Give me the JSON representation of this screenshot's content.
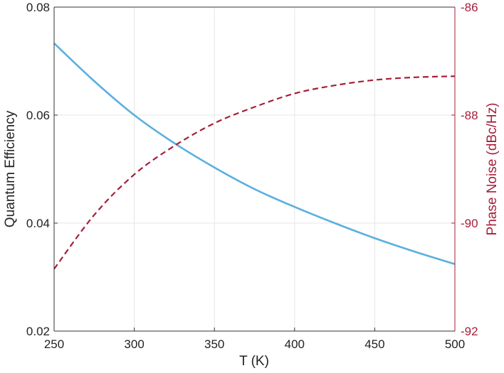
{
  "chart_data": {
    "type": "line",
    "title": "",
    "xlabel": "T (K)",
    "ylabel_left": "Quantum Efficiency",
    "ylabel_right": "Phase Noise (dBc/Hz)",
    "xlim": [
      250,
      500
    ],
    "ylim_left": [
      0.02,
      0.08
    ],
    "ylim_right": [
      -92,
      -86
    ],
    "x_ticks": [
      250,
      300,
      350,
      400,
      450,
      500
    ],
    "y_ticks_left": [
      "0.02",
      "0.04",
      "0.06",
      "0.08"
    ],
    "y_ticks_right": [
      "-92",
      "-90",
      "-88",
      "-86"
    ],
    "grid": true,
    "legend": "none",
    "series": [
      {
        "axis": "left",
        "style": "solid",
        "color": "#5aafdf",
        "x": [
          250,
          275,
          300,
          325,
          350,
          375,
          400,
          425,
          450,
          475,
          500
        ],
        "y": [
          0.0733,
          0.0663,
          0.06,
          0.0548,
          0.0503,
          0.0463,
          0.043,
          0.04,
          0.0372,
          0.0347,
          0.0324
        ]
      },
      {
        "axis": "right",
        "style": "dashed",
        "color": "#a51f3a",
        "x": [
          250,
          275,
          300,
          325,
          350,
          375,
          400,
          425,
          450,
          475,
          500
        ],
        "y": [
          -90.85,
          -89.85,
          -89.1,
          -88.57,
          -88.15,
          -87.85,
          -87.6,
          -87.45,
          -87.35,
          -87.3,
          -87.28
        ]
      }
    ]
  }
}
